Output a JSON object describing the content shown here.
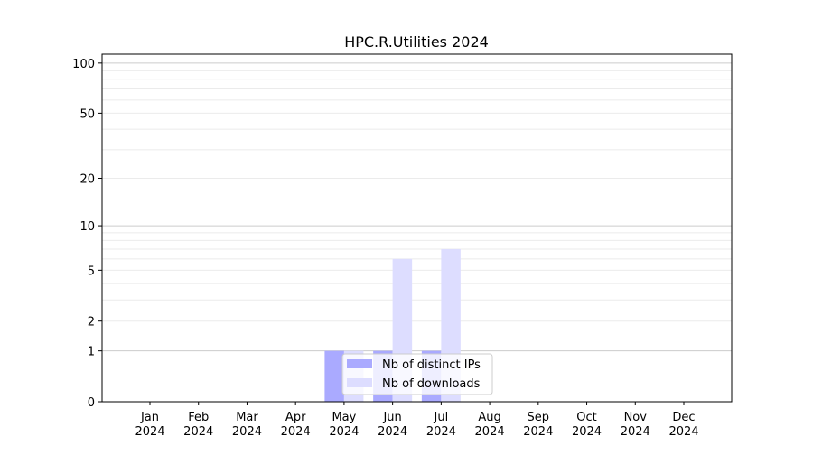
{
  "chart_data": {
    "type": "bar",
    "title": "HPC.R.Utilities 2024",
    "xlabel": "",
    "ylabel": "",
    "yscale": "log(1+y)",
    "ylim": [
      0,
      113
    ],
    "yticks": [
      0,
      1,
      2,
      5,
      10,
      20,
      50,
      100
    ],
    "grid": true,
    "legend_position": "bottom-center",
    "categories": [
      "Jan\n2024",
      "Feb\n2024",
      "Mar\n2024",
      "Apr\n2024",
      "May\n2024",
      "Jun\n2024",
      "Jul\n2024",
      "Aug\n2024",
      "Sep\n2024",
      "Oct\n2024",
      "Nov\n2024",
      "Dec\n2024"
    ],
    "series": [
      {
        "name": "Nb of distinct IPs",
        "color": "#aaaaff",
        "values": [
          0,
          0,
          0,
          0,
          1,
          1,
          1,
          0,
          0,
          0,
          0,
          0
        ]
      },
      {
        "name": "Nb of downloads",
        "color": "#ddddff",
        "values": [
          0,
          0,
          0,
          0,
          1,
          6,
          7,
          0,
          0,
          0,
          0,
          0
        ]
      }
    ]
  }
}
